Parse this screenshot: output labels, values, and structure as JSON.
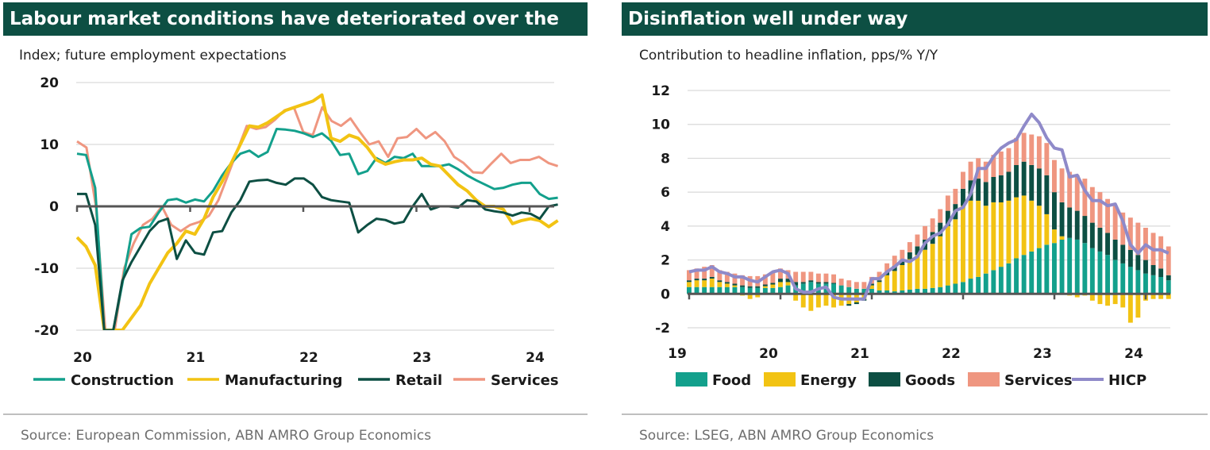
{
  "left": {
    "title": "Labour market conditions have deteriorated over the",
    "subtitle": "Index; future employment expectations",
    "source": "Source: European Commission, ABN AMRO Group Economics"
  },
  "right": {
    "title": "Disinflation well under way",
    "subtitle": "Contribution to headline inflation, pps/% Y/Y",
    "source": "Source: LSEG, ABN AMRO Group Economics"
  },
  "colors": {
    "title_bg": "#0d4f43",
    "construction": "#13a08c",
    "manufacturing": "#f2c313",
    "retail": "#0d4f43",
    "services": "#ef9680",
    "food": "#13a08c",
    "energy": "#f2c313",
    "goods": "#0d4f43",
    "hicp": "#8f8ac9"
  },
  "chart_data": [
    {
      "type": "line",
      "ylim": [
        -20,
        20
      ],
      "yticks": [
        "20",
        "10",
        "0",
        "-10",
        "-20"
      ],
      "xticks": [
        "20",
        "21",
        "22",
        "23",
        "24"
      ],
      "x_start_year": 2020,
      "x_end_year": 2024.25,
      "legend": "bottom",
      "series": [
        {
          "name": "Construction",
          "values": [
            8.5,
            8.3,
            3.0,
            -20.0,
            -20.0,
            -12.5,
            -4.5,
            -3.5,
            -3.3,
            -1.0,
            1.0,
            1.2,
            0.6,
            1.1,
            0.8,
            2.5,
            5.0,
            7.0,
            8.5,
            9.0,
            8.0,
            8.8,
            12.5,
            12.4,
            12.2,
            11.8,
            11.2,
            11.8,
            10.6,
            8.3,
            8.5,
            5.2,
            5.7,
            7.8,
            7.0,
            8.0,
            7.8,
            8.5,
            6.5,
            6.5,
            6.5,
            6.8,
            6.0,
            5.0,
            4.2,
            3.5,
            2.8,
            3.0,
            3.5,
            3.8,
            3.8,
            2.0,
            1.2,
            1.4
          ]
        },
        {
          "name": "Manufacturing",
          "values": [
            -5.0,
            -6.5,
            -9.5,
            -20.0,
            -20.0,
            -20.0,
            -18.0,
            -16.0,
            -12.5,
            -10.0,
            -7.5,
            -6.0,
            -4.0,
            -4.5,
            -2.0,
            1.5,
            4.0,
            7.0,
            10.0,
            13.0,
            12.8,
            13.5,
            14.5,
            15.5,
            16.0,
            16.5,
            17.0,
            18.0,
            11.0,
            10.5,
            11.5,
            11.0,
            9.5,
            7.5,
            6.8,
            7.2,
            7.5,
            7.5,
            7.8,
            6.8,
            6.5,
            5.0,
            3.5,
            2.5,
            1.0,
            0.0,
            0.0,
            -0.5,
            -2.8,
            -2.3,
            -2.0,
            -2.3,
            -3.3,
            -2.3
          ]
        },
        {
          "name": "Retail",
          "values": [
            2.0,
            2.0,
            -3.0,
            -20.0,
            -20.0,
            -12.0,
            -9.0,
            -6.5,
            -4.0,
            -2.5,
            -2.0,
            -8.5,
            -5.5,
            -7.5,
            -7.8,
            -4.2,
            -4.0,
            -1.0,
            1.0,
            4.0,
            4.2,
            4.3,
            3.8,
            3.5,
            4.5,
            4.5,
            3.5,
            1.5,
            1.0,
            0.8,
            0.6,
            -4.2,
            -3.0,
            -2.0,
            -2.2,
            -2.8,
            -2.5,
            0.0,
            2.0,
            -0.5,
            0.0,
            0.0,
            -0.2,
            1.0,
            0.8,
            -0.5,
            -0.8,
            -1.0,
            -1.5,
            -1.0,
            -1.2,
            -2.0,
            0.0,
            0.3
          ]
        },
        {
          "name": "Services",
          "values": [
            10.5,
            9.5,
            0.0,
            -20.0,
            -20.0,
            -10.0,
            -6.0,
            -3.0,
            -2.0,
            0.0,
            -3.0,
            -4.0,
            -3.0,
            -2.5,
            -1.5,
            1.0,
            5.0,
            9.0,
            13.0,
            12.5,
            12.8,
            14.0,
            15.5,
            16.0,
            12.0,
            11.5,
            16.0,
            13.8,
            13.0,
            14.2,
            12.0,
            10.0,
            10.5,
            8.0,
            11.0,
            11.2,
            12.5,
            11.0,
            12.0,
            10.5,
            8.0,
            7.0,
            5.5,
            5.4,
            7.0,
            8.5,
            7.0,
            7.5,
            7.5,
            8.0,
            7.0,
            6.5
          ]
        }
      ]
    },
    {
      "type": "bar",
      "stacked": true,
      "ylim": [
        -2,
        12
      ],
      "yticks": [
        "12",
        "10",
        "8",
        "6",
        "4",
        "2",
        "0",
        "-2"
      ],
      "xticks": [
        "19",
        "20",
        "21",
        "22",
        "23",
        "24"
      ],
      "x_start_year": 2019,
      "x_end_year": 2024.25,
      "legend": "bottom",
      "series": [
        {
          "name": "Food",
          "values": [
            0.4,
            0.4,
            0.4,
            0.4,
            0.4,
            0.4,
            0.4,
            0.4,
            0.35,
            0.35,
            0.35,
            0.35,
            0.4,
            0.5,
            0.5,
            0.6,
            0.7,
            0.6,
            0.6,
            0.6,
            0.5,
            0.4,
            0.3,
            0.3,
            0.3,
            0.2,
            0.2,
            0.15,
            0.2,
            0.25,
            0.3,
            0.3,
            0.35,
            0.4,
            0.5,
            0.6,
            0.7,
            0.9,
            1.0,
            1.2,
            1.4,
            1.6,
            1.8,
            2.1,
            2.3,
            2.5,
            2.7,
            2.9,
            3.0,
            3.2,
            3.3,
            3.2,
            3.0,
            2.7,
            2.5,
            2.3,
            2.0,
            1.8,
            1.6,
            1.4,
            1.2,
            1.1,
            1.0,
            0.8
          ]
        },
        {
          "name": "Energy",
          "values": [
            0.3,
            0.4,
            0.4,
            0.5,
            0.3,
            0.2,
            0.1,
            -0.1,
            -0.3,
            -0.2,
            0.1,
            0.2,
            0.3,
            0.2,
            -0.4,
            -0.8,
            -1.0,
            -0.8,
            -0.7,
            -0.8,
            -0.7,
            -0.6,
            -0.5,
            -0.3,
            0.2,
            0.5,
            0.9,
            1.2,
            1.5,
            1.8,
            2.0,
            2.3,
            2.6,
            3.0,
            3.5,
            3.8,
            4.5,
            4.6,
            4.5,
            4.0,
            4.0,
            3.8,
            3.7,
            3.6,
            3.5,
            3.0,
            2.5,
            1.8,
            0.8,
            0.2,
            -0.1,
            -0.2,
            -0.1,
            -0.4,
            -0.6,
            -0.7,
            -0.6,
            -0.8,
            -1.7,
            -1.4,
            -0.4,
            -0.3,
            -0.3,
            -0.3
          ]
        },
        {
          "name": "Goods",
          "values": [
            0.1,
            0.1,
            0.1,
            0.1,
            0.1,
            0.1,
            0.1,
            0.1,
            0.1,
            0.1,
            0.1,
            0.1,
            0.2,
            0.2,
            0.2,
            0.1,
            0.1,
            0.1,
            0.1,
            0.05,
            0.0,
            -0.1,
            -0.1,
            -0.1,
            0.1,
            0.1,
            0.2,
            0.3,
            0.3,
            0.4,
            0.5,
            0.6,
            0.7,
            0.8,
            0.9,
            0.9,
            1.0,
            1.2,
            1.3,
            1.4,
            1.5,
            1.6,
            1.7,
            1.9,
            2.0,
            2.1,
            2.2,
            2.3,
            2.2,
            2.0,
            1.8,
            1.7,
            1.6,
            1.5,
            1.4,
            1.3,
            1.2,
            1.1,
            1.0,
            0.9,
            0.8,
            0.6,
            0.5,
            0.3
          ]
        },
        {
          "name": "Services",
          "values": [
            0.6,
            0.6,
            0.7,
            0.7,
            0.6,
            0.6,
            0.6,
            0.6,
            0.6,
            0.6,
            0.6,
            0.6,
            0.6,
            0.5,
            0.6,
            0.6,
            0.5,
            0.5,
            0.5,
            0.5,
            0.4,
            0.4,
            0.4,
            0.4,
            0.4,
            0.5,
            0.5,
            0.6,
            0.6,
            0.6,
            0.7,
            0.8,
            0.8,
            0.8,
            0.9,
            0.9,
            1.0,
            1.1,
            1.2,
            1.2,
            1.3,
            1.4,
            1.4,
            1.6,
            1.7,
            1.8,
            1.9,
            1.9,
            1.9,
            2.0,
            2.1,
            2.1,
            2.2,
            2.1,
            2.1,
            2.0,
            2.0,
            1.9,
            1.9,
            1.9,
            1.9,
            1.9,
            1.9,
            1.7
          ]
        },
        {
          "name": "HICP",
          "type": "line",
          "values": [
            1.3,
            1.4,
            1.4,
            1.6,
            1.3,
            1.2,
            1.0,
            1.0,
            0.8,
            0.7,
            1.0,
            1.3,
            1.4,
            1.2,
            0.3,
            0.1,
            0.1,
            0.3,
            0.4,
            -0.2,
            -0.3,
            -0.3,
            -0.3,
            -0.3,
            0.9,
            0.9,
            1.3,
            1.6,
            2.0,
            1.9,
            2.2,
            3.0,
            3.4,
            3.6,
            4.1,
            4.9,
            5.1,
            5.9,
            7.4,
            7.4,
            8.1,
            8.6,
            8.9,
            9.1,
            9.9,
            10.6,
            10.1,
            9.2,
            8.6,
            8.5,
            6.9,
            7.0,
            6.1,
            5.5,
            5.5,
            5.2,
            5.3,
            4.3,
            2.9,
            2.4,
            2.9,
            2.6,
            2.6,
            2.4
          ]
        }
      ]
    }
  ]
}
